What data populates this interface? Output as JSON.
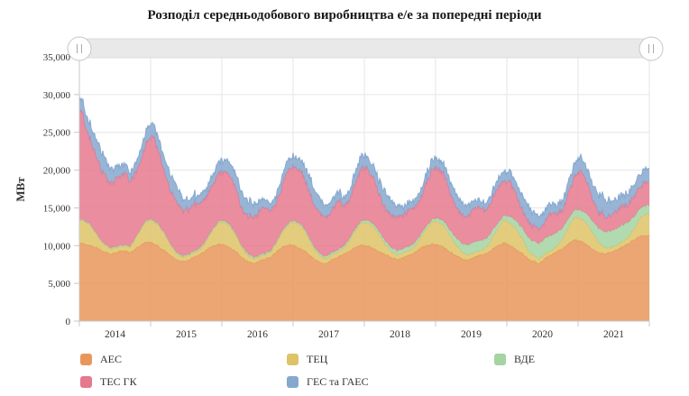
{
  "title": "Розподіл середньодобового виробництва е/е за попередні періоди",
  "y_axis": {
    "label": "МВт",
    "max": 35000,
    "tick_interval": 5000,
    "ticks": [
      "0",
      "5,000",
      "10,000",
      "15,000",
      "20,000",
      "25,000",
      "30,000",
      "35,000"
    ]
  },
  "x_axis": {
    "years": [
      "2014",
      "2015",
      "2016",
      "2017",
      "2018",
      "2019",
      "2020",
      "2021"
    ]
  },
  "navigator": {
    "left_handle_icon": "drag-grip-icon",
    "right_handle_icon": "drag-grip-icon"
  },
  "legend": [
    {
      "label": "АЕС",
      "color": "#e8975c"
    },
    {
      "label": "ТЕЦ",
      "color": "#dfc369"
    },
    {
      "label": "ВДЕ",
      "color": "#a5d3a2"
    },
    {
      "label": "ТЕС ГК",
      "color": "#e5798e"
    },
    {
      "label": "ГЕС та ГАЕС",
      "color": "#86a8cf"
    }
  ],
  "chart_data": {
    "type": "area",
    "stacked": true,
    "title": "Розподіл середньодобового виробництва е/е за попередні періоди",
    "ylabel": "МВт",
    "unit": "МВт (середньодобове виробництво)",
    "x_start": 2014,
    "x_end": 2022,
    "x_resolution": "monthly",
    "ylim": [
      0,
      35000
    ],
    "grid": true,
    "legend_position": "bottom",
    "series": [
      {
        "name": "АЕС",
        "color": "#e8975c",
        "values": [
          10300,
          10100,
          9800,
          9500,
          9200,
          9000,
          9200,
          9400,
          9100,
          9700,
          10200,
          10500,
          10300,
          9900,
          9300,
          8600,
          8100,
          7900,
          8200,
          8500,
          8800,
          9400,
          9900,
          10200,
          10000,
          9600,
          9100,
          8400,
          7900,
          7600,
          8000,
          8300,
          8700,
          9400,
          9900,
          10200,
          10000,
          9600,
          9000,
          8300,
          7900,
          7700,
          8100,
          8400,
          8800,
          9300,
          9800,
          10000,
          9900,
          9600,
          9200,
          8800,
          8400,
          8100,
          8400,
          8700,
          9000,
          9600,
          10000,
          10300,
          10100,
          9700,
          9200,
          8800,
          8300,
          8100,
          8500,
          8800,
          9000,
          9500,
          10000,
          10400,
          10100,
          9600,
          9000,
          8300,
          7900,
          7700,
          8300,
          8700,
          9100,
          9700,
          10300,
          10700,
          10500,
          10100,
          9600,
          9100,
          8900,
          9100,
          9500,
          9900,
          10300,
          10800,
          11300,
          11400
        ]
      },
      {
        "name": "ТЕЦ",
        "color": "#dfc369",
        "values": [
          3000,
          2800,
          2100,
          1300,
          800,
          600,
          550,
          550,
          700,
          1300,
          2100,
          2800,
          2900,
          2700,
          2000,
          1200,
          750,
          600,
          550,
          550,
          700,
          1300,
          2100,
          2800,
          3000,
          2800,
          2000,
          1200,
          750,
          600,
          550,
          550,
          700,
          1300,
          2200,
          2900,
          3100,
          2900,
          2100,
          1300,
          800,
          600,
          550,
          600,
          750,
          1400,
          2200,
          2900,
          3100,
          2900,
          2200,
          1300,
          800,
          650,
          600,
          600,
          750,
          1400,
          2300,
          3000,
          3000,
          2800,
          2100,
          1300,
          800,
          650,
          600,
          600,
          750,
          1400,
          2300,
          3000,
          2900,
          2700,
          2000,
          1200,
          750,
          600,
          550,
          600,
          750,
          1400,
          2300,
          3000,
          3000,
          2800,
          2100,
          1300,
          800,
          650,
          600,
          650,
          800,
          1500,
          2400,
          2800
        ]
      },
      {
        "name": "ВДЕ",
        "color": "#a5d3a2",
        "values": [
          150,
          150,
          150,
          160,
          170,
          170,
          170,
          170,
          160,
          150,
          150,
          150,
          170,
          170,
          170,
          180,
          190,
          190,
          190,
          190,
          180,
          170,
          170,
          170,
          200,
          200,
          210,
          220,
          230,
          230,
          230,
          230,
          220,
          210,
          200,
          200,
          250,
          260,
          280,
          300,
          310,
          310,
          310,
          300,
          290,
          270,
          260,
          250,
          350,
          380,
          420,
          480,
          520,
          550,
          560,
          550,
          500,
          430,
          380,
          360,
          500,
          600,
          800,
          1000,
          1200,
          1350,
          1400,
          1350,
          1200,
          950,
          700,
          600,
          900,
          1100,
          1400,
          1700,
          1900,
          2000,
          2050,
          2000,
          1800,
          1400,
          1100,
          1000,
          1100,
          1300,
          1600,
          1900,
          2100,
          2200,
          2250,
          2200,
          2000,
          1600,
          1300,
          1200
        ]
      },
      {
        "name": "ТЕС ГК",
        "color": "#e5798e",
        "values": [
          14500,
          11450,
          10250,
          9140,
          8730,
          8430,
          8880,
          9180,
          8740,
          8650,
          9150,
          10350,
          10830,
          9530,
          8130,
          6920,
          6360,
          6110,
          6460,
          6660,
          6020,
          5930,
          6330,
          6630,
          6800,
          6400,
          5690,
          5080,
          5020,
          5270,
          5620,
          5920,
          5280,
          5290,
          5900,
          7000,
          7150,
          6640,
          5920,
          5300,
          5190,
          5290,
          5540,
          6500,
          5460,
          5530,
          6240,
          6950,
          6750,
          6120,
          5180,
          4520,
          4480,
          4500,
          4840,
          5150,
          4650,
          4770,
          5720,
          6840,
          6400,
          5700,
          4600,
          3800,
          3800,
          3700,
          4000,
          4250,
          3900,
          4000,
          4500,
          4500,
          4500,
          3800,
          2600,
          2100,
          2150,
          2600,
          2800,
          3000,
          2650,
          2800,
          3600,
          4600,
          4800,
          4200,
          2900,
          2200,
          2100,
          1950,
          2350,
          2550,
          2200,
          2400,
          2600,
          2900
        ]
      },
      {
        "name": "ГЕС та ГАЕС",
        "color": "#86a8cf",
        "values": [
          1700,
          1800,
          2200,
          2600,
          2400,
          1900,
          1500,
          1300,
          1200,
          1300,
          1500,
          1700,
          1600,
          1700,
          1900,
          2100,
          1900,
          1500,
          1200,
          1000,
          900,
          1000,
          1200,
          1400,
          1500,
          1600,
          2000,
          2300,
          2100,
          1700,
          1300,
          1100,
          1000,
          1100,
          1300,
          1500,
          1500,
          1600,
          1900,
          2200,
          2000,
          1600,
          1300,
          1100,
          1000,
          1100,
          1300,
          1500,
          1400,
          1500,
          1800,
          2100,
          1900,
          1500,
          1200,
          1000,
          900,
          1000,
          1200,
          1400,
          1300,
          1400,
          1700,
          1900,
          1700,
          1400,
          1100,
          900,
          850,
          950,
          1100,
          1300,
          1400,
          1500,
          1800,
          2000,
          1900,
          1600,
          1300,
          1100,
          1000,
          1200,
          1500,
          1700,
          1800,
          1900,
          2200,
          2400,
          2300,
          2000,
          1700,
          1500,
          1400,
          1500,
          1700,
          1900
        ]
      }
    ]
  }
}
